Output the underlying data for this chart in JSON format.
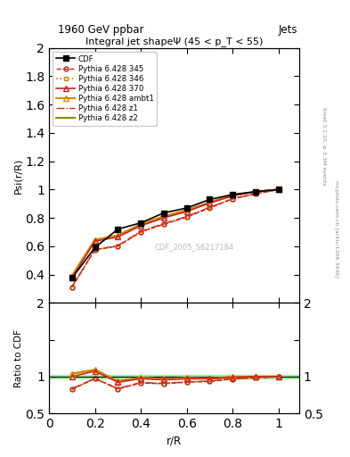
{
  "title_top": "1960 GeV ppbar",
  "title_top_right": "Jets",
  "plot_title": "Integral jet shapeΨ (45 < p_T < 55)",
  "xlabel": "r/R",
  "ylabel_main": "Psi(r/R)",
  "ylabel_ratio": "Ratio to CDF",
  "watermark": "CDF_2005_S6217184",
  "right_label_top": "Rivet 3.1.10, ≥ 3.3M events",
  "right_label_bot": "mcplots.cern.ch [arXiv:1306.3436]",
  "x": [
    0.1,
    0.2,
    0.3,
    0.4,
    0.5,
    0.6,
    0.7,
    0.8,
    0.9,
    1.0
  ],
  "cdf": [
    0.375,
    0.59,
    0.72,
    0.765,
    0.835,
    0.87,
    0.93,
    0.965,
    0.985,
    1.0
  ],
  "p345": [
    0.31,
    0.575,
    0.6,
    0.7,
    0.755,
    0.805,
    0.87,
    0.935,
    0.97,
    1.0
  ],
  "p346": [
    0.31,
    0.575,
    0.6,
    0.7,
    0.755,
    0.805,
    0.875,
    0.935,
    0.97,
    1.0
  ],
  "p370": [
    0.375,
    0.635,
    0.665,
    0.745,
    0.8,
    0.845,
    0.905,
    0.955,
    0.985,
    1.0
  ],
  "pambt1": [
    0.39,
    0.645,
    0.675,
    0.755,
    0.81,
    0.855,
    0.91,
    0.96,
    0.985,
    1.0
  ],
  "pz1": [
    0.315,
    0.575,
    0.605,
    0.705,
    0.76,
    0.81,
    0.875,
    0.935,
    0.97,
    1.0
  ],
  "pz2": [
    0.39,
    0.645,
    0.675,
    0.755,
    0.81,
    0.855,
    0.91,
    0.96,
    0.985,
    1.0
  ],
  "col_345": "#cc2222",
  "col_346": "#cc8800",
  "col_370": "#cc2222",
  "col_ambt1": "#dd8800",
  "col_z1": "#cc2222",
  "col_z2": "#888800",
  "band_color": "#90ee90",
  "ylim_main": [
    0.2,
    2.0
  ],
  "ylim_ratio": [
    0.5,
    2.0
  ],
  "xlim": [
    0.0,
    1.09
  ]
}
